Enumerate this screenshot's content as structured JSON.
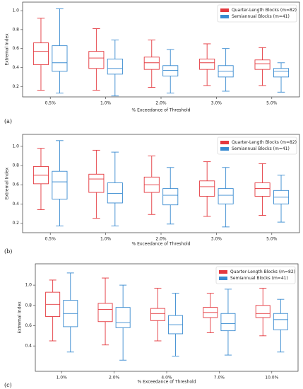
{
  "chart_data": [
    {
      "type": "box",
      "panel_label": "(a)",
      "xlabel": "% Exceedance of Threshold",
      "ylabel": "Extremal Index",
      "categories": [
        "0.5%",
        "1.0%",
        "2.0%",
        "3.0%",
        "5.0%"
      ],
      "series": [
        {
          "name": "Quarter-Length Blocks (m=82)",
          "color": "#e4383e",
          "values": [
            [
              0.16,
              0.43,
              0.57,
              0.66,
              0.92
            ],
            [
              0.16,
              0.39,
              0.5,
              0.57,
              0.81
            ],
            [
              0.19,
              0.38,
              0.45,
              0.51,
              0.69
            ],
            [
              0.21,
              0.38,
              0.45,
              0.49,
              0.65
            ],
            [
              0.21,
              0.38,
              0.44,
              0.48,
              0.61
            ]
          ]
        },
        {
          "name": "Semiannual Blocks (m=41)",
          "color": "#3a8bd0",
          "values": [
            [
              0.13,
              0.36,
              0.45,
              0.63,
              1.02
            ],
            [
              0.1,
              0.33,
              0.39,
              0.49,
              0.69
            ],
            [
              0.13,
              0.31,
              0.37,
              0.42,
              0.59
            ],
            [
              0.15,
              0.3,
              0.36,
              0.42,
              0.6
            ],
            [
              0.14,
              0.3,
              0.36,
              0.39,
              0.45
            ]
          ]
        }
      ],
      "ylim": [
        0.09,
        1.09
      ],
      "yticks": [
        0.2,
        0.4,
        0.6,
        0.8,
        {
          "value": 1.0,
          "label": "1.0"
        }
      ],
      "legend_loc": "upper right"
    },
    {
      "type": "box",
      "panel_label": "(b)",
      "xlabel": "% Exceedance of Threshold",
      "ylabel": "Extremal Index",
      "categories": [
        "0.5%",
        "1.0%",
        "2.0%",
        "3.0%",
        "5.0%"
      ],
      "series": [
        {
          "name": "Quarter-Length Blocks (m=82)",
          "color": "#e4383e",
          "values": [
            [
              0.34,
              0.61,
              0.7,
              0.79,
              0.98
            ],
            [
              0.25,
              0.52,
              0.66,
              0.71,
              0.96
            ],
            [
              0.29,
              0.52,
              0.6,
              0.68,
              0.9
            ],
            [
              0.27,
              0.48,
              0.58,
              0.64,
              0.84
            ],
            [
              0.28,
              0.48,
              0.56,
              0.62,
              0.82
            ]
          ]
        },
        {
          "name": "Semiannual Blocks (m=41)",
          "color": "#3a8bd0",
          "values": [
            [
              0.17,
              0.45,
              0.63,
              0.74,
              1.06
            ],
            [
              0.17,
              0.41,
              0.51,
              0.62,
              0.94
            ],
            [
              0.19,
              0.39,
              0.49,
              0.56,
              0.78
            ],
            [
              0.16,
              0.4,
              0.49,
              0.56,
              0.78
            ],
            [
              0.21,
              0.4,
              0.47,
              0.54,
              0.7
            ]
          ]
        }
      ],
      "ylim": [
        0.1,
        1.125
      ],
      "yticks": [
        0.2,
        0.4,
        0.6,
        0.8,
        {
          "value": 1.0,
          "label": "1.0"
        }
      ],
      "legend_loc": "upper right"
    },
    {
      "type": "box",
      "panel_label": "(c)",
      "xlabel": "% Exceedance of Threshold",
      "ylabel": "Extremal Index",
      "categories": [
        "1.0%",
        "2.0%",
        "4.0%",
        "7.0%",
        "10.0%"
      ],
      "series": [
        {
          "name": "Quarter-Length Blocks (m=82)",
          "color": "#e4383e",
          "values": [
            [
              0.45,
              0.69,
              0.81,
              0.93,
              1.05
            ],
            [
              0.41,
              0.64,
              0.76,
              0.82,
              1.07
            ],
            [
              0.45,
              0.65,
              0.72,
              0.77,
              0.97
            ],
            [
              0.53,
              0.68,
              0.73,
              0.78,
              0.92
            ],
            [
              0.5,
              0.68,
              0.72,
              0.8,
              0.97
            ]
          ]
        },
        {
          "name": "Semiannual Blocks (m=41)",
          "color": "#3a8bd0",
          "values": [
            [
              0.34,
              0.59,
              0.72,
              0.85,
              1.12
            ],
            [
              0.26,
              0.58,
              0.63,
              0.78,
              1.0
            ],
            [
              0.3,
              0.52,
              0.61,
              0.7,
              0.92
            ],
            [
              0.31,
              0.55,
              0.62,
              0.72,
              0.96
            ],
            [
              0.34,
              0.56,
              0.66,
              0.72,
              0.86
            ]
          ]
        }
      ],
      "ylim": [
        0.15,
        1.21
      ],
      "yticks": [
        0.4,
        0.6,
        0.8,
        {
          "value": 1.0,
          "label": "1.0"
        }
      ],
      "legend_loc": "upper right"
    }
  ]
}
